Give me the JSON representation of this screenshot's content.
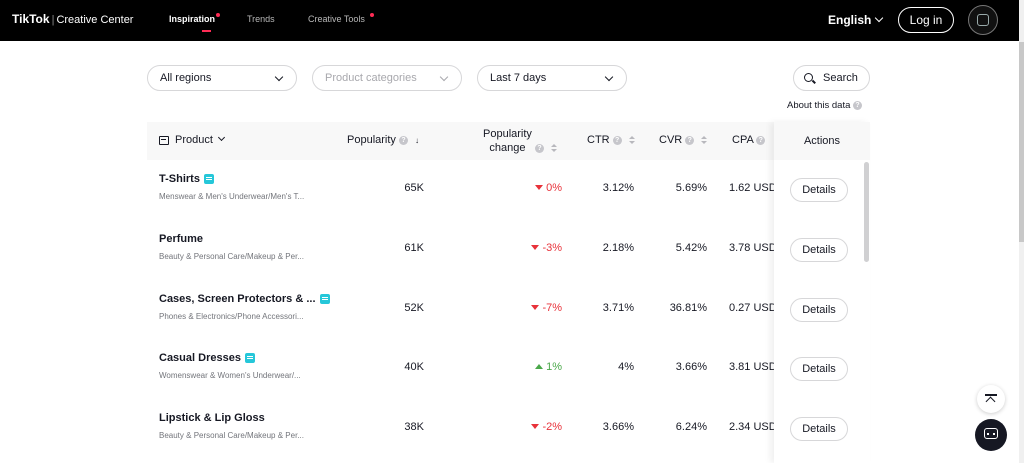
{
  "nav": {
    "brand_main": "TikTok",
    "brand_sub": "Creative Center",
    "links": [
      {
        "label": "Inspiration",
        "active": true,
        "dot": true
      },
      {
        "label": "Trends",
        "active": false,
        "dot": false
      },
      {
        "label": "Creative Tools",
        "active": false,
        "dot": true
      }
    ],
    "language": "English",
    "login": "Log in"
  },
  "filters": {
    "region": "All regions",
    "category_placeholder": "Product categories",
    "period": "Last 7 days",
    "search": "Search",
    "about": "About this data"
  },
  "table": {
    "headers": {
      "product": "Product",
      "popularity": "Popularity",
      "popularity_change_1": "Popularity",
      "popularity_change_2": "change",
      "ctr": "CTR",
      "cvr": "CVR",
      "cpa": "CPA",
      "actions": "Actions"
    },
    "details_label": "Details",
    "rows": [
      {
        "name": "T-Shirts",
        "tag": true,
        "category": "Menswear & Men's Underwear/Men's T...",
        "popularity": "65K",
        "change": "0%",
        "direction": "down",
        "ctr": "3.12%",
        "cvr": "5.69%",
        "cpa": "1.62 USD"
      },
      {
        "name": "Perfume",
        "tag": false,
        "category": "Beauty & Personal Care/Makeup & Per...",
        "popularity": "61K",
        "change": "-3%",
        "direction": "down",
        "ctr": "2.18%",
        "cvr": "5.42%",
        "cpa": "3.78 USD"
      },
      {
        "name": "Cases, Screen Protectors & ...",
        "tag": true,
        "category": "Phones & Electronics/Phone Accessori...",
        "popularity": "52K",
        "change": "-7%",
        "direction": "down",
        "ctr": "3.71%",
        "cvr": "36.81%",
        "cpa": "0.27 USD"
      },
      {
        "name": "Casual Dresses",
        "tag": true,
        "category": "Womenswear & Women's Underwear/...",
        "popularity": "40K",
        "change": "1%",
        "direction": "up",
        "ctr": "4%",
        "cvr": "3.66%",
        "cpa": "3.81 USD"
      },
      {
        "name": "Lipstick & Lip Gloss",
        "tag": false,
        "category": "Beauty & Personal Care/Makeup & Per...",
        "popularity": "38K",
        "change": "-2%",
        "direction": "down",
        "ctr": "3.66%",
        "cvr": "6.24%",
        "cpa": "2.34 USD"
      }
    ]
  }
}
